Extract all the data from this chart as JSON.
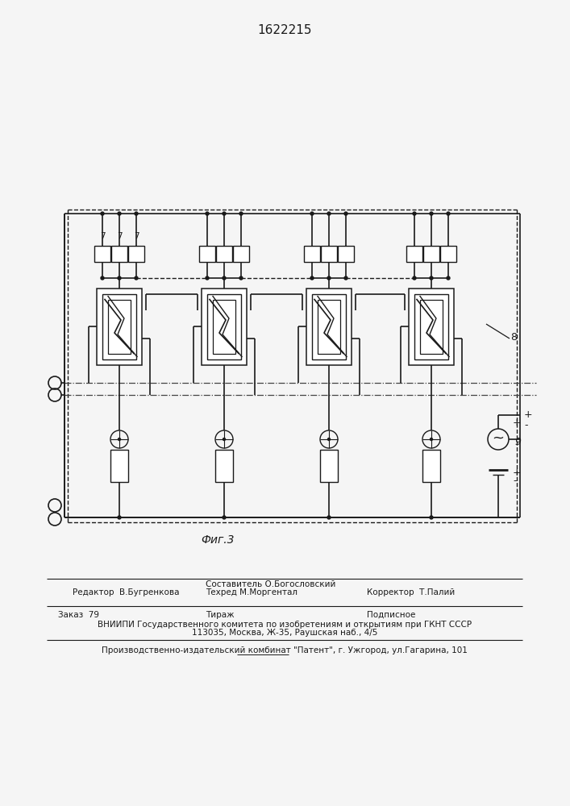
{
  "title": "1622215",
  "fig_label": "Фиг.3",
  "label_7": "7",
  "label_8": "8",
  "label_9": "9",
  "bg_color": "#f5f5f5",
  "line_color": "#1a1a1a",
  "editor_col1": "Редактор  В.Бугренкова",
  "sostavitel_line": "Составитель О.Богословский",
  "techred_line": "Техред М.Моргентал",
  "corrector_line": "Корректор  Т.Палий",
  "order_line": "Заказ  79",
  "tirazh_line": "Тираж",
  "podpisnoe_line": "Подписное",
  "vnipi_line1": "ВНИИПИ Государственного комитета по изобретениям и открытиям при ГКНТ СССР",
  "vnipi_line2": "113035, Москва, Ж-35, Раушская наб., 4/5",
  "factory_line": "Производственно-издательский комбинат \"Патент\", г. Ужгород, ул.Гагарина, 101"
}
